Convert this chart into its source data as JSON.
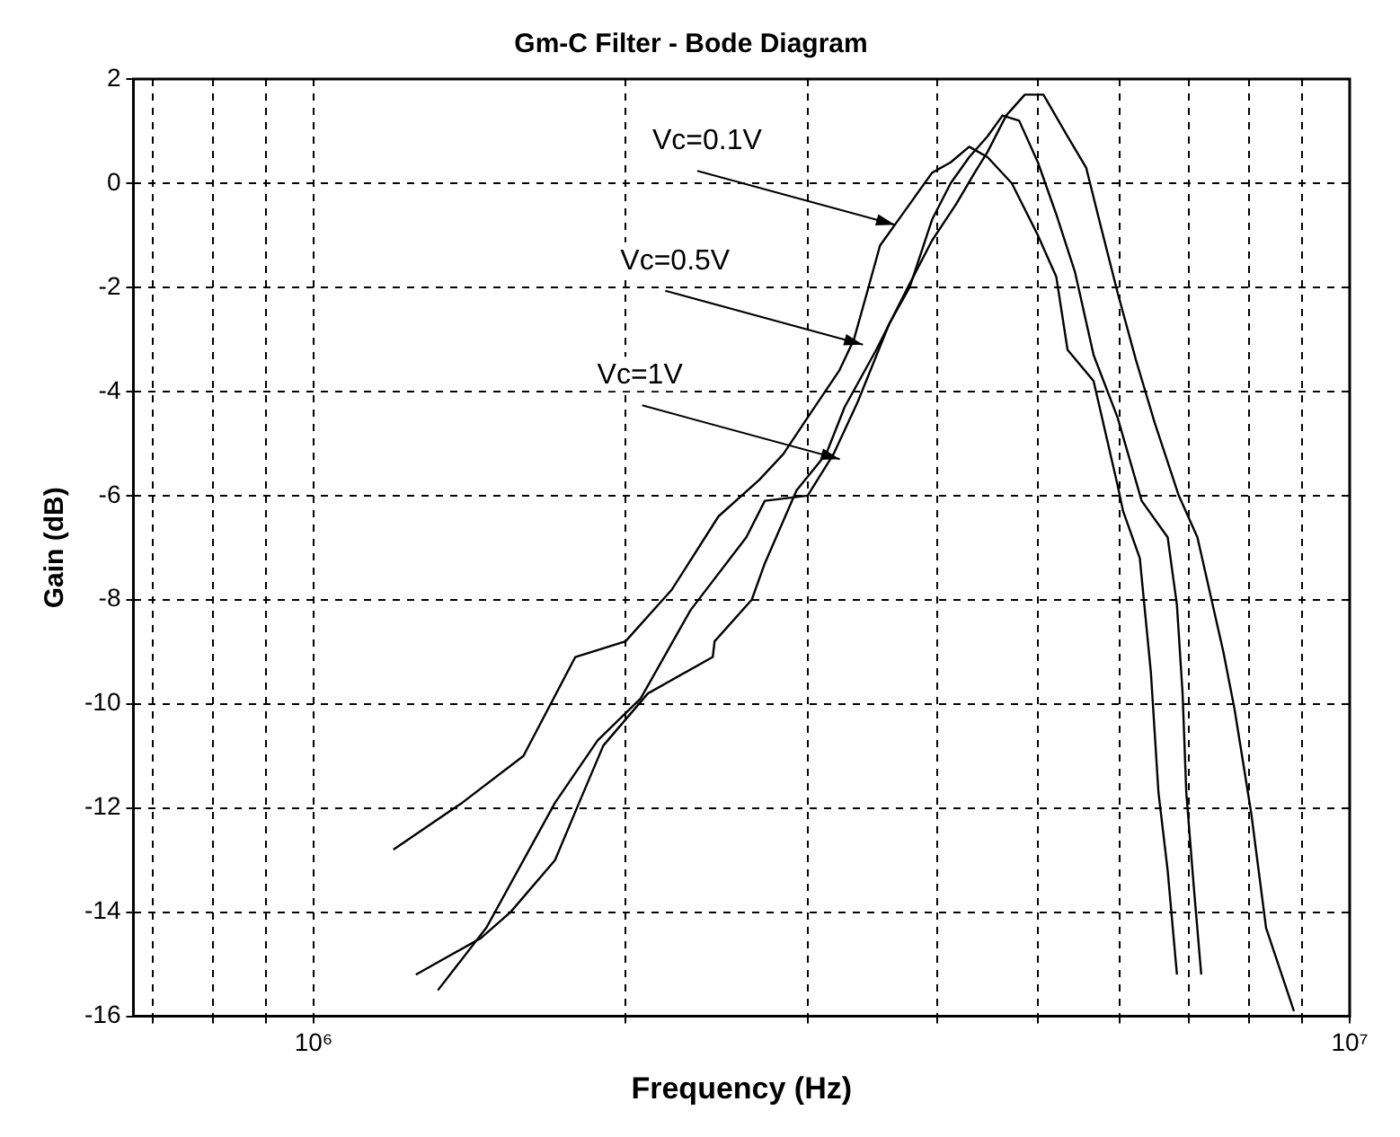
{
  "chart_data": {
    "type": "line",
    "title": "Gm-C Filter - Bode Diagram",
    "xlabel": "Frequency (Hz)",
    "ylabel": "Gain (dB)",
    "log": "x",
    "grid": true,
    "legend": false,
    "marker": "none",
    "line_style": "solid",
    "xlim": [
      670000,
      10000000
    ],
    "xticks": [
      {
        "value": 700000,
        "label": null
      },
      {
        "value": 800000,
        "label": null
      },
      {
        "value": 900000,
        "label": null
      },
      {
        "value": 1000000,
        "label": "10⁶"
      },
      {
        "value": 2000000,
        "label": null
      },
      {
        "value": 3000000,
        "label": null
      },
      {
        "value": 4000000,
        "label": null
      },
      {
        "value": 5000000,
        "label": null
      },
      {
        "value": 6000000,
        "label": null
      },
      {
        "value": 7000000,
        "label": null
      },
      {
        "value": 8000000,
        "label": null
      },
      {
        "value": 9000000,
        "label": null
      },
      {
        "value": 10000000,
        "label": "10⁷"
      }
    ],
    "ylim": [
      -16,
      2
    ],
    "yticks": [
      -16,
      -14,
      -12,
      -10,
      -8,
      -6,
      -4,
      -2,
      0,
      2
    ],
    "series": [
      {
        "color": "#000000",
        "x": [
          1194000,
          1391000,
          1594000,
          1789000,
          2000000,
          2218000,
          2459000,
          2692000,
          2841000,
          2998000,
          3216000,
          3323000,
          3421000,
          3521000,
          3639000,
          3793000,
          3953000,
          4120000,
          4293000,
          4472000,
          4719000,
          5001000,
          5210000,
          5342000,
          5660000,
          5970000,
          6044000,
          6272000,
          6429000,
          6538000,
          6673000,
          6812000
        ],
        "values": [
          -12.8,
          -11.9,
          -11.0,
          -9.1,
          -8.8,
          -7.8,
          -6.4,
          -5.7,
          -5.2,
          -4.5,
          -3.6,
          -3.0,
          -2.1,
          -1.2,
          -0.8,
          -0.3,
          0.2,
          0.4,
          0.7,
          0.5,
          0.0,
          -1.0,
          -1.8,
          -3.2,
          -3.8,
          -5.8,
          -6.3,
          -7.2,
          -9.4,
          -11.7,
          -13.2,
          -15.2
        ]
      },
      {
        "color": "#000000",
        "x": [
          1318000,
          1468000,
          1710000,
          1880000,
          2068000,
          2311000,
          2616000,
          2726000,
          2998000,
          3176000,
          3351000,
          3594000,
          3761000,
          3953000,
          4120000,
          4293000,
          4472000,
          4623000,
          4797000,
          5001000,
          5210000,
          5430000,
          5660000,
          5970000,
          6298000,
          6673000,
          6812000,
          6898000,
          6955000,
          7071000,
          7190000
        ],
        "values": [
          -15.5,
          -14.3,
          -11.9,
          -10.7,
          -9.9,
          -8.2,
          -6.8,
          -6.1,
          -6.0,
          -5.2,
          -4.2,
          -2.7,
          -2.0,
          -0.7,
          0.0,
          0.5,
          0.9,
          1.3,
          1.2,
          0.4,
          -0.6,
          -1.7,
          -3.3,
          -4.5,
          -6.1,
          -6.8,
          -8.1,
          -9.8,
          -11.7,
          -13.5,
          -15.2
        ]
      },
      {
        "color": "#000000",
        "x": [
          1255000,
          1450000,
          1549000,
          1710000,
          1804000,
          1904000,
          2102000,
          2428000,
          2438000,
          2648000,
          2726000,
          2925000,
          3124000,
          3255000,
          3492000,
          3746000,
          3953000,
          4171000,
          4345000,
          4472000,
          4661000,
          4858000,
          5063000,
          5342000,
          5567000,
          5730000,
          5970000,
          6220000,
          6483000,
          6840000,
          7129000,
          7552000,
          7742000,
          8035000,
          8304000,
          8835000
        ],
        "values": [
          -15.2,
          -14.5,
          -14.0,
          -13.0,
          -11.9,
          -10.8,
          -9.8,
          -9.1,
          -8.8,
          -8.0,
          -7.3,
          -5.9,
          -5.2,
          -4.3,
          -3.2,
          -2.0,
          -1.1,
          -0.4,
          0.2,
          0.6,
          1.3,
          1.7,
          1.7,
          0.9,
          0.3,
          -0.7,
          -2.1,
          -3.4,
          -4.6,
          -6.0,
          -6.8,
          -9.0,
          -10.1,
          -12.1,
          -14.3,
          -15.9
        ]
      }
    ],
    "annotations": [
      {
        "text": "Vc=0.1V",
        "x": 3640000,
        "y": -0.8
      },
      {
        "text": "Vc=0.5V",
        "x": 3390000,
        "y": -3.1
      },
      {
        "text": "Vc=1V",
        "x": 3220000,
        "y": -5.3
      }
    ]
  }
}
